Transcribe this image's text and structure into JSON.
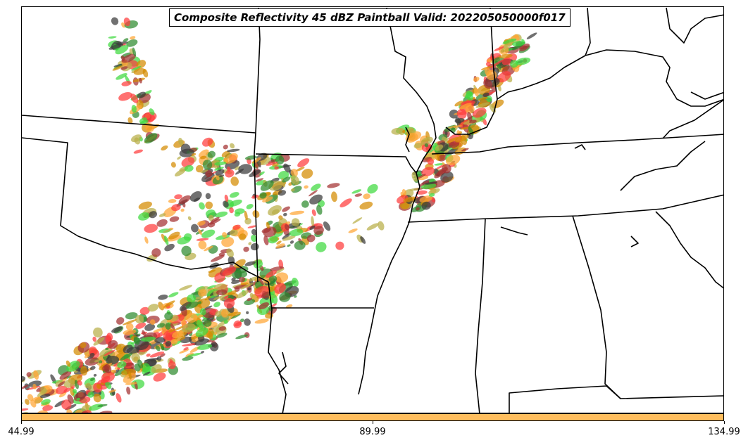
{
  "title": "Composite Reflectivity 45 dBZ Paintball Valid: 202205050000f017",
  "colorbar": {
    "color": "#ffbe5e",
    "ticks": [
      "44.99",
      "89.99",
      "134.99"
    ]
  },
  "member_colors": [
    "#ff3b3b",
    "#ffa533",
    "#3fd93f",
    "#a33030",
    "#b9ae48",
    "#3a3a3a",
    "#2e8b2e",
    "#d48a00"
  ],
  "basemap": {
    "region": "South-Central and Southeastern United States",
    "boundaries": "state and coastline outlines in black"
  }
}
